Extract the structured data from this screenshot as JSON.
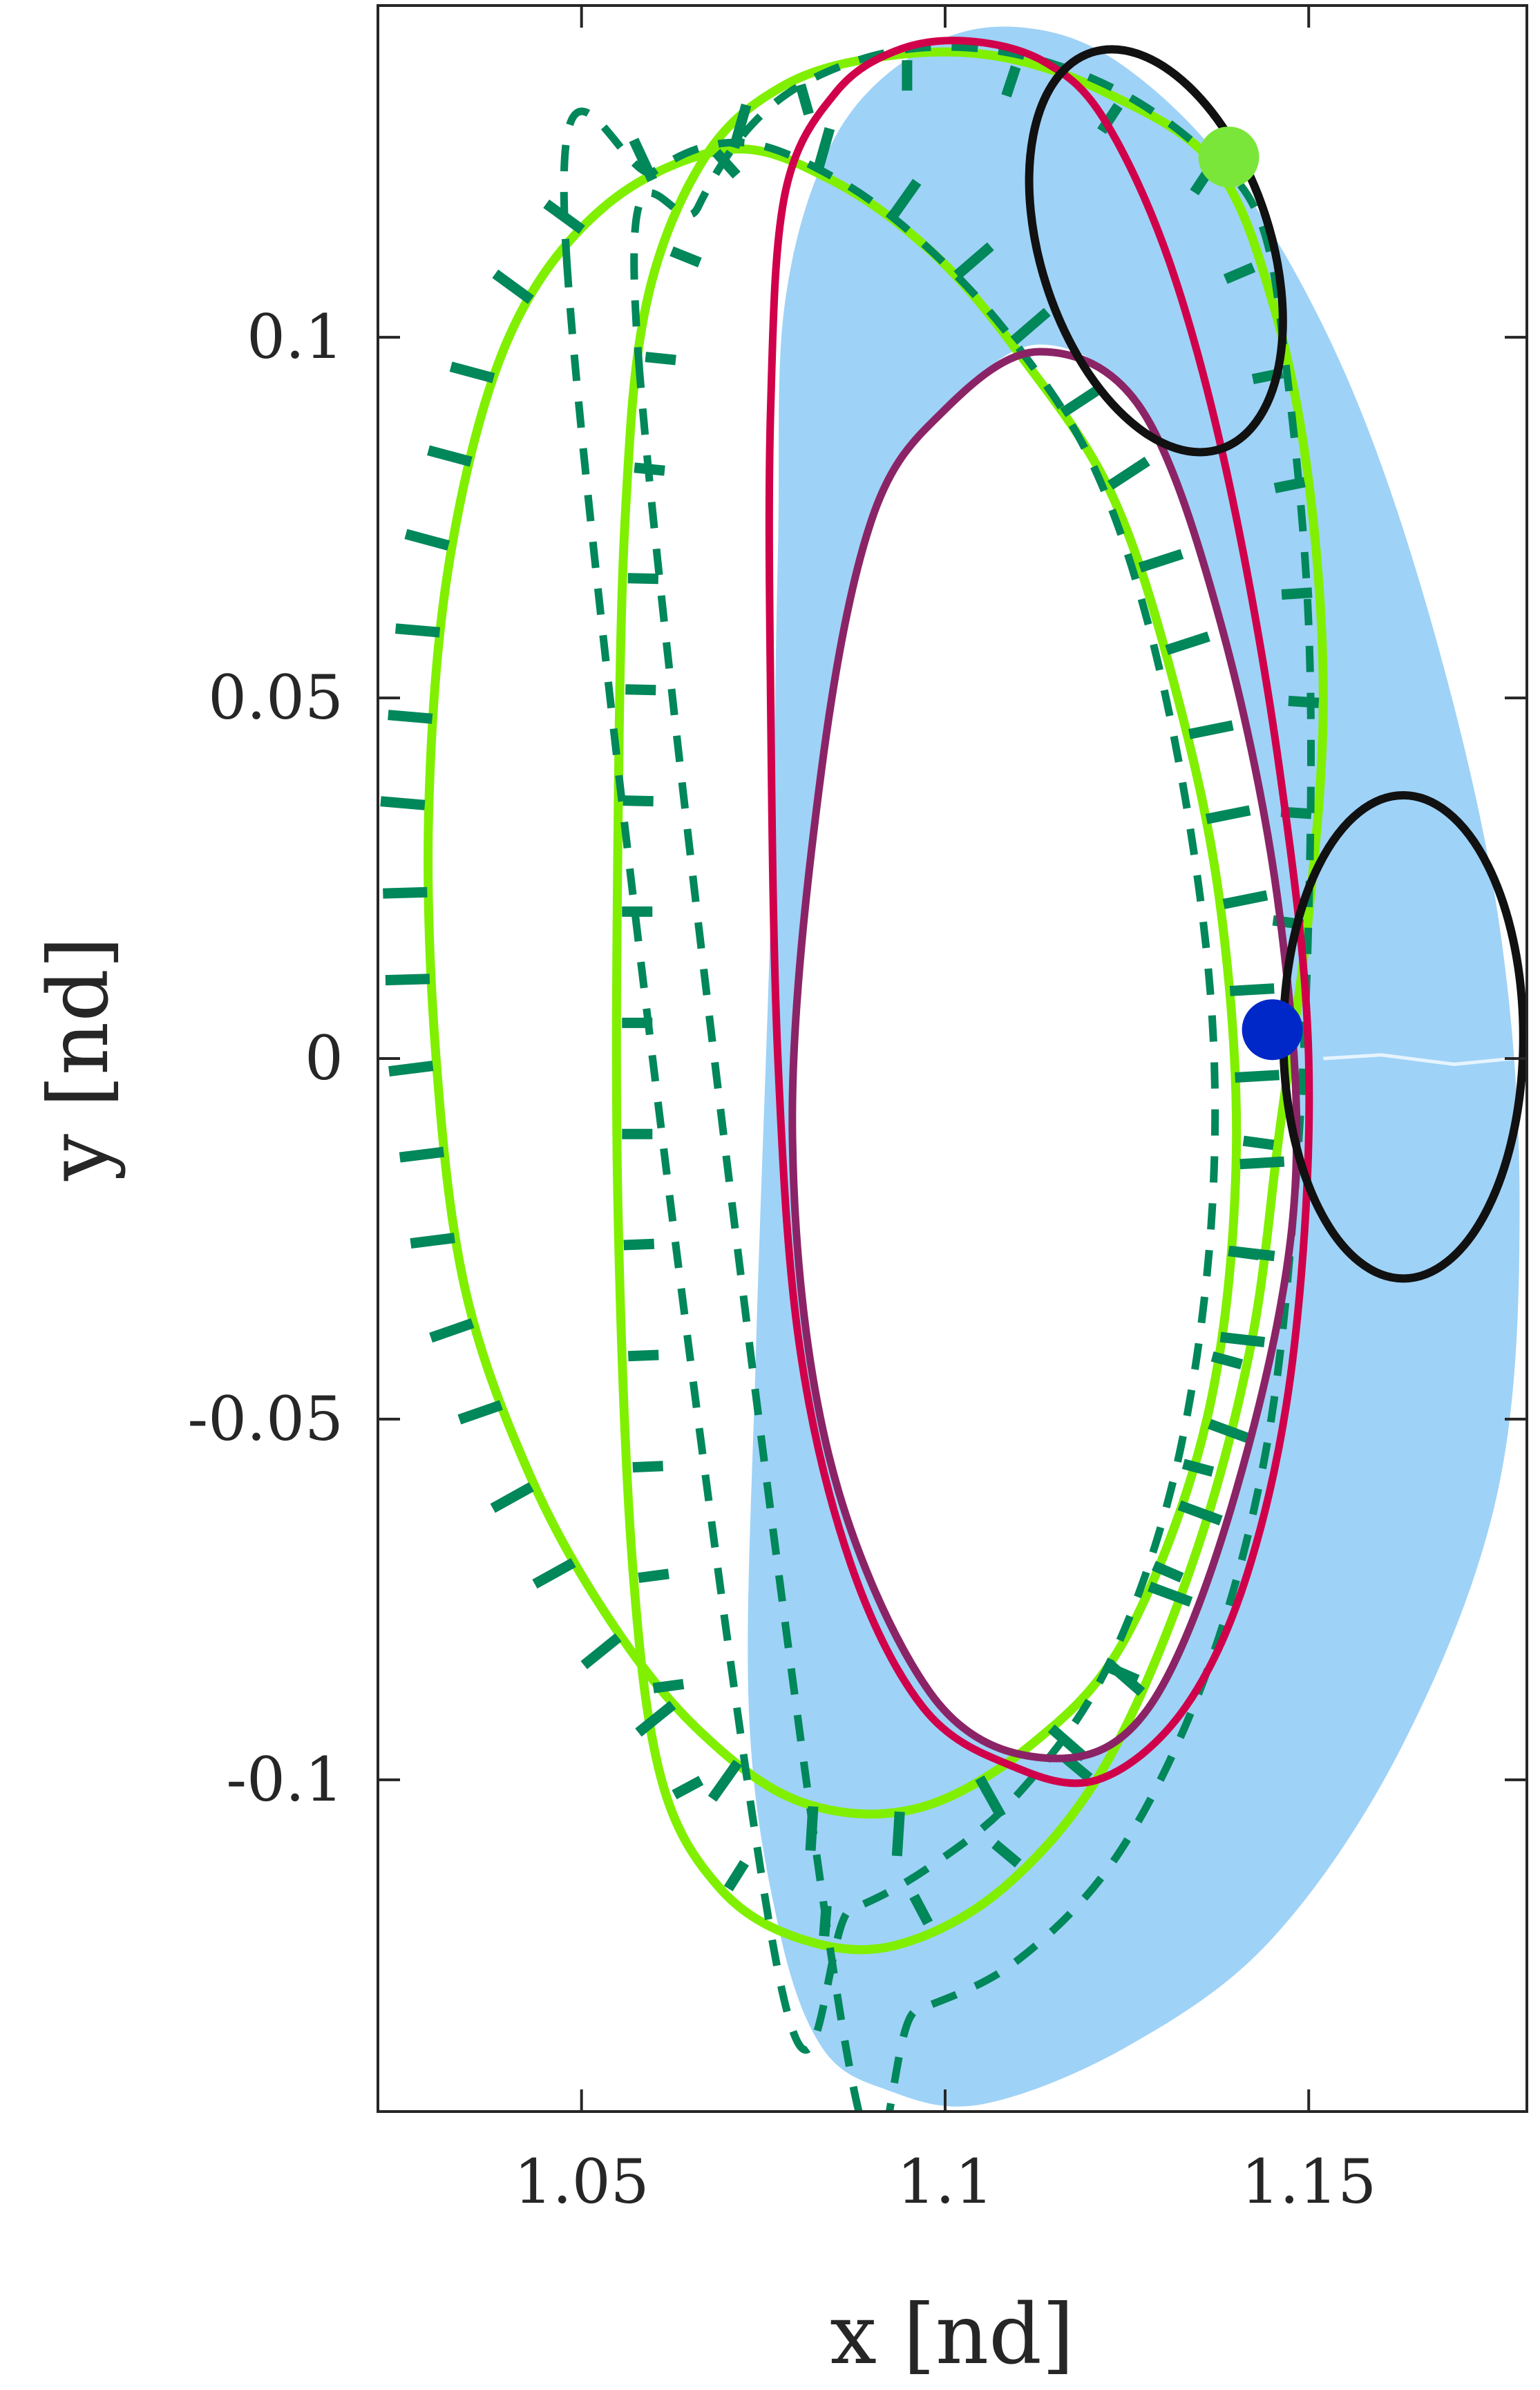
{
  "chart_data": {
    "type": "line",
    "title": "",
    "xlabel": "x [nd]",
    "ylabel": "y [nd]",
    "xlim": [
      1.022,
      1.18
    ],
    "ylim": [
      -0.146,
      0.146
    ],
    "grid": false,
    "legend": "none",
    "xticks": [
      {
        "value": 1.05,
        "label": "1.05"
      },
      {
        "value": 1.1,
        "label": "1.1"
      },
      {
        "value": 1.15,
        "label": "1.15"
      }
    ],
    "yticks": [
      {
        "value": 0.1,
        "label": "0.1"
      },
      {
        "value": 0.05,
        "label": "0.05"
      },
      {
        "value": 0,
        "label": "0"
      },
      {
        "value": -0.05,
        "label": "-0.05"
      },
      {
        "value": -0.1,
        "label": "-0.1"
      }
    ],
    "colors": {
      "band": "#9fd2f7",
      "green": "#80f000",
      "dashed": "#00875a",
      "crimson": "#d0004a",
      "purple": "#8b2466",
      "black": "#111111",
      "blue_marker": "#0028c8",
      "green_marker": "#7be63a"
    },
    "series": [
      {
        "id": "reachable-band",
        "style": "fill",
        "points": [
          [
            1.078,
            0.105
          ],
          [
            1.085,
            0.128
          ],
          [
            1.097,
            0.14
          ],
          [
            1.11,
            0.143
          ],
          [
            1.124,
            0.138
          ],
          [
            1.14,
            0.122
          ],
          [
            1.155,
            0.095
          ],
          [
            1.167,
            0.06
          ],
          [
            1.176,
            0.02
          ],
          [
            1.179,
            -0.02
          ],
          [
            1.176,
            -0.06
          ],
          [
            1.163,
            -0.095
          ],
          [
            1.145,
            -0.122
          ],
          [
            1.125,
            -0.137
          ],
          [
            1.105,
            -0.145
          ],
          [
            1.092,
            -0.143
          ],
          [
            1.083,
            -0.137
          ],
          [
            1.077,
            -0.12
          ],
          [
            1.073,
            -0.09
          ],
          [
            1.074,
            -0.04
          ],
          [
            1.076,
            0.02
          ],
          [
            1.077,
            0.07
          ]
        ]
      },
      {
        "id": "band-hole",
        "style": "hole",
        "points": [
          [
            1.1,
            0.09
          ],
          [
            1.113,
            0.099
          ],
          [
            1.127,
            0.09
          ],
          [
            1.138,
            0.06
          ],
          [
            1.146,
            0.02
          ],
          [
            1.148,
            -0.02
          ],
          [
            1.14,
            -0.06
          ],
          [
            1.128,
            -0.09
          ],
          [
            1.114,
            -0.097
          ],
          [
            1.098,
            -0.088
          ],
          [
            1.084,
            -0.055
          ],
          [
            1.079,
            -0.01
          ],
          [
            1.083,
            0.04
          ],
          [
            1.09,
            0.075
          ]
        ]
      },
      {
        "id": "green-orbit-outer",
        "style": "solid",
        "points": [
          [
            1.04,
            0.1
          ],
          [
            1.053,
            0.118
          ],
          [
            1.07,
            0.126
          ],
          [
            1.084,
            0.122
          ],
          [
            1.098,
            0.112
          ],
          [
            1.11,
            0.098
          ],
          [
            1.123,
            0.078
          ],
          [
            1.132,
            0.05
          ],
          [
            1.138,
            0.02
          ],
          [
            1.14,
            -0.015
          ],
          [
            1.136,
            -0.05
          ],
          [
            1.125,
            -0.08
          ],
          [
            1.112,
            -0.095
          ],
          [
            1.096,
            -0.104
          ],
          [
            1.08,
            -0.103
          ],
          [
            1.066,
            -0.093
          ],
          [
            1.054,
            -0.078
          ],
          [
            1.043,
            -0.058
          ],
          [
            1.034,
            -0.032
          ],
          [
            1.03,
            0.0
          ],
          [
            1.029,
            0.035
          ],
          [
            1.032,
            0.07
          ]
        ]
      },
      {
        "id": "green-orbit-inner",
        "style": "solid",
        "points": [
          [
            1.059,
            0.105
          ],
          [
            1.067,
            0.125
          ],
          [
            1.078,
            0.135
          ],
          [
            1.092,
            0.139
          ],
          [
            1.107,
            0.139
          ],
          [
            1.122,
            0.134
          ],
          [
            1.137,
            0.124
          ],
          [
            1.145,
            0.105
          ],
          [
            1.15,
            0.08
          ],
          [
            1.152,
            0.05
          ],
          [
            1.15,
            0.02
          ],
          [
            1.146,
            -0.01
          ],
          [
            1.142,
            -0.04
          ],
          [
            1.134,
            -0.07
          ],
          [
            1.122,
            -0.098
          ],
          [
            1.108,
            -0.115
          ],
          [
            1.093,
            -0.123
          ],
          [
            1.08,
            -0.122
          ],
          [
            1.069,
            -0.115
          ],
          [
            1.061,
            -0.1
          ],
          [
            1.057,
            -0.07
          ],
          [
            1.055,
            -0.02
          ],
          [
            1.055,
            0.03
          ],
          [
            1.056,
            0.075
          ]
        ]
      },
      {
        "id": "green-dash-outer",
        "style": "dashed",
        "points": [
          [
            1.048,
            0.11
          ],
          [
            1.06,
            0.123
          ],
          [
            1.072,
            0.127
          ],
          [
            1.085,
            0.122
          ],
          [
            1.097,
            0.113
          ],
          [
            1.109,
            0.1
          ],
          [
            1.12,
            0.083
          ],
          [
            1.128,
            0.06
          ],
          [
            1.134,
            0.03
          ],
          [
            1.137,
            0.0
          ],
          [
            1.136,
            -0.03
          ],
          [
            1.131,
            -0.06
          ],
          [
            1.122,
            -0.085
          ],
          [
            1.11,
            -0.102
          ],
          [
            1.098,
            -0.112
          ],
          [
            1.087,
            -0.118
          ],
          [
            1.076,
            -0.121
          ]
        ]
      },
      {
        "id": "green-dash-inner",
        "style": "dashed",
        "points": [
          [
            1.058,
            0.095
          ],
          [
            1.066,
            0.118
          ],
          [
            1.076,
            0.132
          ],
          [
            1.09,
            0.139
          ],
          [
            1.105,
            0.14
          ],
          [
            1.12,
            0.136
          ],
          [
            1.133,
            0.128
          ],
          [
            1.143,
            0.117
          ],
          [
            1.147,
            0.095
          ],
          [
            1.15,
            0.06
          ],
          [
            1.15,
            0.02
          ],
          [
            1.148,
            -0.02
          ],
          [
            1.144,
            -0.055
          ],
          [
            1.136,
            -0.085
          ],
          [
            1.124,
            -0.11
          ],
          [
            1.11,
            -0.125
          ],
          [
            1.096,
            -0.132
          ],
          [
            1.086,
            -0.135
          ]
        ]
      },
      {
        "id": "crimson-orbit",
        "style": "solid",
        "points": [
          [
            1.078,
            0.12
          ],
          [
            1.085,
            0.134
          ],
          [
            1.094,
            0.14
          ],
          [
            1.104,
            0.141
          ],
          [
            1.114,
            0.138
          ],
          [
            1.122,
            0.13
          ],
          [
            1.131,
            0.11
          ],
          [
            1.139,
            0.08
          ],
          [
            1.146,
            0.04
          ],
          [
            1.15,
            0.0
          ],
          [
            1.148,
            -0.04
          ],
          [
            1.142,
            -0.07
          ],
          [
            1.133,
            -0.09
          ],
          [
            1.121,
            -0.1
          ],
          [
            1.109,
            -0.098
          ],
          [
            1.097,
            -0.09
          ],
          [
            1.087,
            -0.07
          ],
          [
            1.08,
            -0.04
          ],
          [
            1.077,
            0.0
          ],
          [
            1.076,
            0.05
          ],
          [
            1.076,
            0.09
          ]
        ]
      },
      {
        "id": "purple-orbit",
        "style": "solid",
        "points": [
          [
            1.1,
            0.09
          ],
          [
            1.113,
            0.098
          ],
          [
            1.127,
            0.09
          ],
          [
            1.138,
            0.06
          ],
          [
            1.146,
            0.02
          ],
          [
            1.148,
            -0.02
          ],
          [
            1.14,
            -0.06
          ],
          [
            1.128,
            -0.09
          ],
          [
            1.114,
            -0.097
          ],
          [
            1.098,
            -0.088
          ],
          [
            1.084,
            -0.055
          ],
          [
            1.079,
            -0.01
          ],
          [
            1.083,
            0.04
          ],
          [
            1.09,
            0.075
          ]
        ]
      },
      {
        "id": "black-ellipse-upper",
        "style": "ellipse",
        "center": [
          1.129,
          0.112
        ],
        "radius_x": 0.0158,
        "radius_y": 0.0289,
        "rotation_deg": -18
      },
      {
        "id": "black-ellipse-right",
        "style": "ellipse",
        "center": [
          1.163,
          0.003
        ],
        "radius_x": 0.0165,
        "radius_y": 0.0335,
        "rotation_deg": 0
      }
    ],
    "markers": [
      {
        "id": "start-point",
        "x": 1.139,
        "y": 0.125,
        "color": "#7be63a"
      },
      {
        "id": "end-point",
        "x": 1.145,
        "y": 0.004,
        "color": "#0028c8"
      }
    ]
  }
}
